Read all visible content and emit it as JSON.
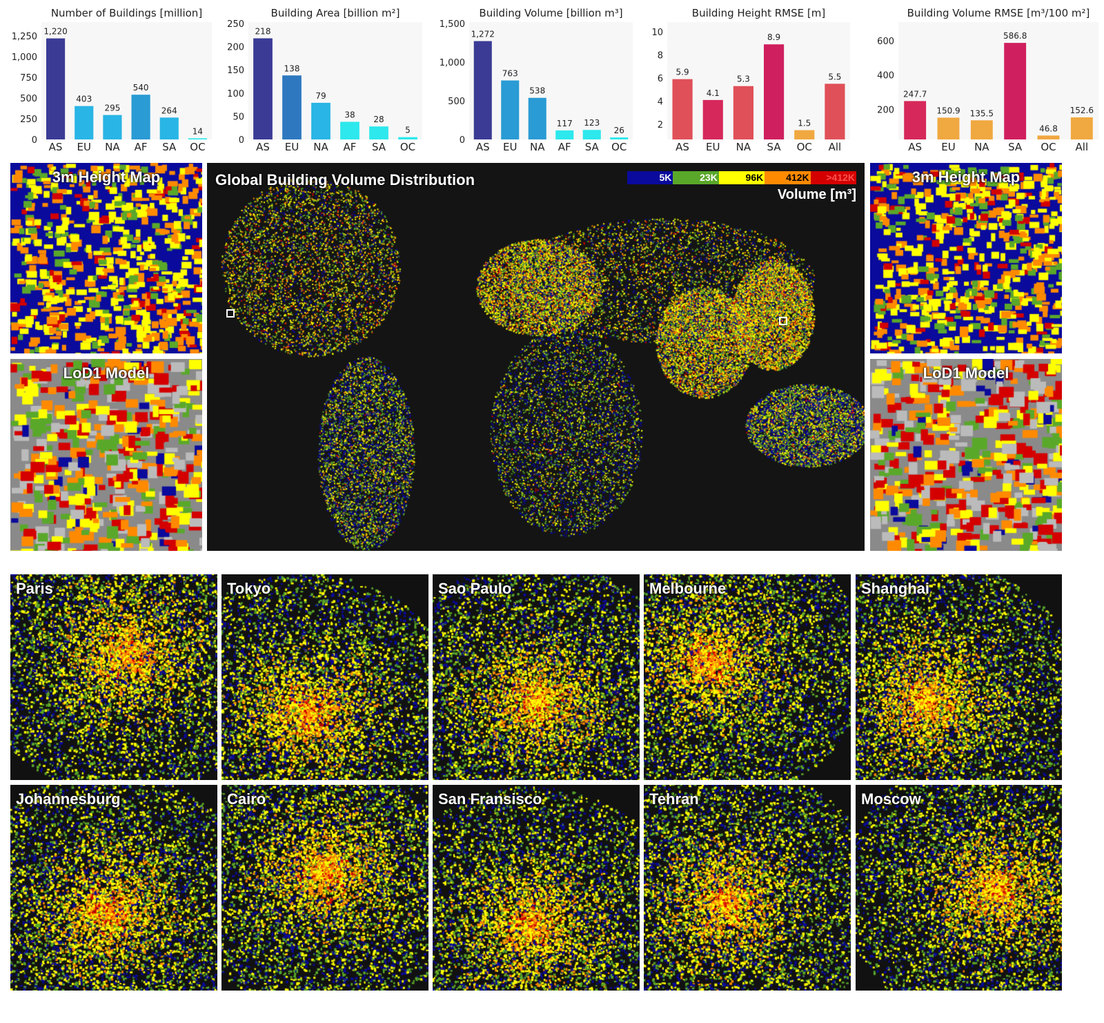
{
  "chart_data": [
    {
      "type": "bar",
      "title": "Number of Buildings [million]",
      "categories": [
        "AS",
        "EU",
        "NA",
        "AF",
        "SA",
        "OC"
      ],
      "values": [
        1220,
        403,
        295,
        540,
        264,
        14
      ],
      "data_labels": [
        "1,220",
        "403",
        "295",
        "540",
        "264",
        "14"
      ],
      "yticks": [
        "0",
        "250",
        "500",
        "750",
        "1,000",
        "1,250"
      ],
      "ytick_values": [
        0,
        250,
        500,
        750,
        1000,
        1250
      ],
      "ylim": [
        0,
        1400
      ],
      "colors": [
        "#3b3b96",
        "#29b5e5",
        "#29b5e5",
        "#2a9bd4",
        "#29b5e5",
        "#2de8ec"
      ]
    },
    {
      "type": "bar",
      "title": "Building Area [billion m²]",
      "categories": [
        "AS",
        "EU",
        "NA",
        "AF",
        "SA",
        "OC"
      ],
      "values": [
        218,
        138,
        79,
        38,
        28,
        5
      ],
      "data_labels": [
        "218",
        "138",
        "79",
        "38",
        "28",
        "5"
      ],
      "yticks": [
        "0",
        "50",
        "100",
        "150",
        "200",
        "250"
      ],
      "ytick_values": [
        0,
        50,
        100,
        150,
        200,
        250
      ],
      "ylim": [
        0,
        250
      ],
      "colors": [
        "#3b3b96",
        "#2e78c0",
        "#29b5e5",
        "#2de8ec",
        "#2de8ec",
        "#2de8ec"
      ]
    },
    {
      "type": "bar",
      "title": "Building Volume [billion m³]",
      "categories": [
        "AS",
        "EU",
        "NA",
        "AF",
        "SA",
        "OC"
      ],
      "values": [
        1272,
        763,
        538,
        117,
        123,
        26
      ],
      "data_labels": [
        "1,272",
        "763",
        "538",
        "117",
        "123",
        "26"
      ],
      "yticks": [
        "0",
        "500",
        "1,000",
        "1,500"
      ],
      "ytick_values": [
        0,
        500,
        1000,
        1500
      ],
      "ylim": [
        0,
        1500
      ],
      "colors": [
        "#3b3b96",
        "#2a9bd4",
        "#2a9bd4",
        "#2de8ec",
        "#2de8ec",
        "#2de8ec"
      ]
    },
    {
      "type": "bar",
      "title": "Building Height RMSE [m]",
      "categories": [
        "AS",
        "EU",
        "NA",
        "SA",
        "OC",
        "All"
      ],
      "values": [
        5.9,
        4.1,
        5.3,
        8.9,
        1.5,
        5.5
      ],
      "data_labels": [
        "5.9",
        "4.1",
        "5.3",
        "8.9",
        "1.5",
        "5.5"
      ],
      "yticks": [
        "2",
        "4",
        "6",
        "8",
        "10"
      ],
      "ytick_values": [
        2,
        4,
        6,
        8,
        10
      ],
      "ylim": [
        0.7,
        10.7
      ],
      "colors": [
        "#e05058",
        "#d6285a",
        "#e05058",
        "#d01f5e",
        "#f0a840",
        "#e05058"
      ]
    },
    {
      "type": "bar",
      "title": "Building Volume RMSE [m³/100 m²]",
      "categories": [
        "AS",
        "EU",
        "NA",
        "SA",
        "OC",
        "All"
      ],
      "values": [
        247.7,
        150.9,
        135.5,
        586.8,
        46.8,
        152.6
      ],
      "data_labels": [
        "247.7",
        "150.9",
        "135.5",
        "586.8",
        "46.8",
        "152.6"
      ],
      "yticks": [
        "200",
        "400",
        "600"
      ],
      "ytick_values": [
        200,
        400,
        600
      ],
      "ylim": [
        24,
        700
      ],
      "colors": [
        "#d6285a",
        "#f0a840",
        "#f0a840",
        "#d01f5e",
        "#f0a840",
        "#f0a840"
      ]
    }
  ],
  "map": {
    "title": "Global Building Volume Distribution",
    "legend_title": "Volume [m³]",
    "legend": [
      {
        "label": "5K",
        "color": "#0a0a9c",
        "text": "#ffffff"
      },
      {
        "label": "23K",
        "color": "#5aa82a",
        "text": "#ffffff"
      },
      {
        "label": "96K",
        "color": "#ffff00",
        "text": "#000000"
      },
      {
        "label": "412K",
        "color": "#ff8a00",
        "text": "#000000"
      },
      {
        "label": ">412K",
        "color": "#d40000",
        "text": "#ff4040"
      }
    ]
  },
  "side_panels": {
    "left_top": "3m Height Map",
    "left_bottom": "LoD1 Model",
    "right_top": "3m Height Map",
    "right_bottom": "LoD1 Model"
  },
  "cities": [
    "Paris",
    "Tokyo",
    "Sao Paulo",
    "Melbourne",
    "Shanghai",
    "Johannesburg",
    "Cairo",
    "San Fransisco",
    "Tehran",
    "Moscow"
  ]
}
